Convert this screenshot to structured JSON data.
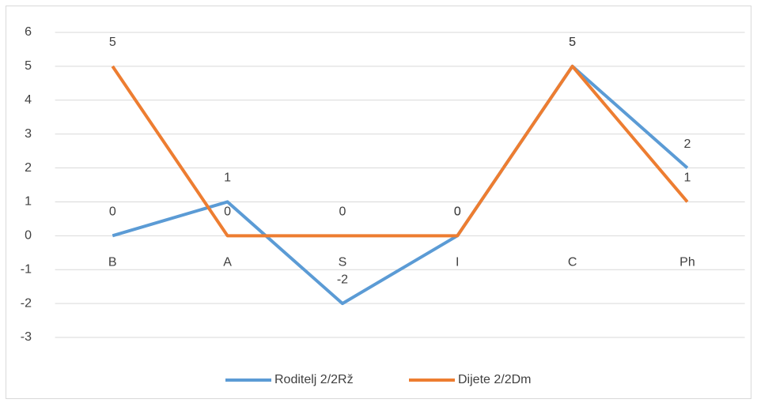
{
  "chart_data": {
    "type": "line",
    "categories": [
      "B",
      "A",
      "S",
      "I",
      "C",
      "Ph"
    ],
    "series": [
      {
        "name": "Roditelj 2/2Rž",
        "color": "#5b9bd5",
        "values": [
          0,
          1,
          -2,
          0,
          5,
          2
        ]
      },
      {
        "name": "Dijete 2/2Dm",
        "color": "#ed7d31",
        "values": [
          5,
          0,
          0,
          0,
          5,
          1
        ]
      }
    ],
    "ylim": [
      -3,
      6
    ],
    "yticks": [
      -3,
      -2,
      -1,
      0,
      1,
      2,
      3,
      4,
      5,
      6
    ],
    "grid": true,
    "legend": "bottom"
  }
}
